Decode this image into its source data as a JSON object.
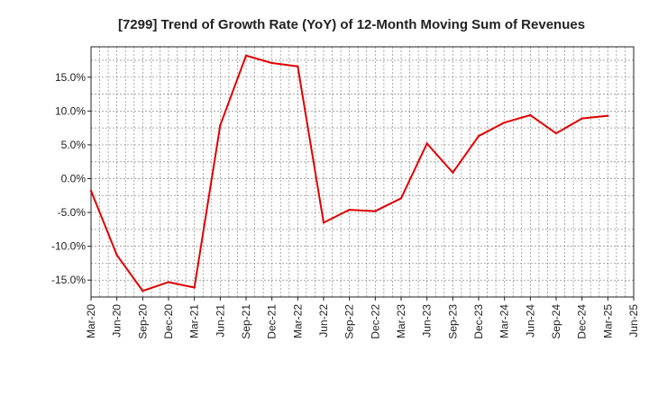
{
  "chart_data": {
    "type": "line",
    "title": "[7299]  Trend of Growth Rate (YoY) of 12-Month Moving Sum of Revenues",
    "xlabel": "",
    "ylabel": "",
    "x_ticks": [
      "Mar-20",
      "Jun-20",
      "Sep-20",
      "Dec-20",
      "Mar-21",
      "Jun-21",
      "Sep-21",
      "Dec-21",
      "Mar-22",
      "Jun-22",
      "Sep-22",
      "Dec-22",
      "Mar-23",
      "Jun-23",
      "Sep-23",
      "Dec-23",
      "Mar-24",
      "Jun-24",
      "Sep-24",
      "Dec-24",
      "Mar-25",
      "Jun-25"
    ],
    "y_ticks": [
      15,
      10,
      5,
      0,
      -5,
      -10,
      -15
    ],
    "y_tick_labels": [
      "15.0%",
      "10.0%",
      "5.0%",
      "0.0%",
      "-5.0%",
      "-10.0%",
      "-15.0%"
    ],
    "ylim": [
      -17.5,
      19.5
    ],
    "grid": true,
    "line_color": "#e00000",
    "series": [
      {
        "x": [
          "Mar-20",
          "Jun-20",
          "Sep-20",
          "Dec-20",
          "Mar-21",
          "Jun-21",
          "Sep-21",
          "Dec-21",
          "Mar-22",
          "Jun-22",
          "Sep-22",
          "Dec-22",
          "Mar-23",
          "Jun-23",
          "Sep-23",
          "Dec-23",
          "Mar-24",
          "Jun-24",
          "Sep-24",
          "Dec-24",
          "Mar-25"
        ],
        "values": [
          -1.8,
          -11.3,
          -16.6,
          -15.3,
          -16.1,
          7.9,
          18.2,
          17.1,
          16.6,
          -6.5,
          -4.6,
          -4.8,
          -2.9,
          5.2,
          0.9,
          6.3,
          8.3,
          9.4,
          6.7,
          8.9,
          9.3
        ]
      }
    ]
  }
}
